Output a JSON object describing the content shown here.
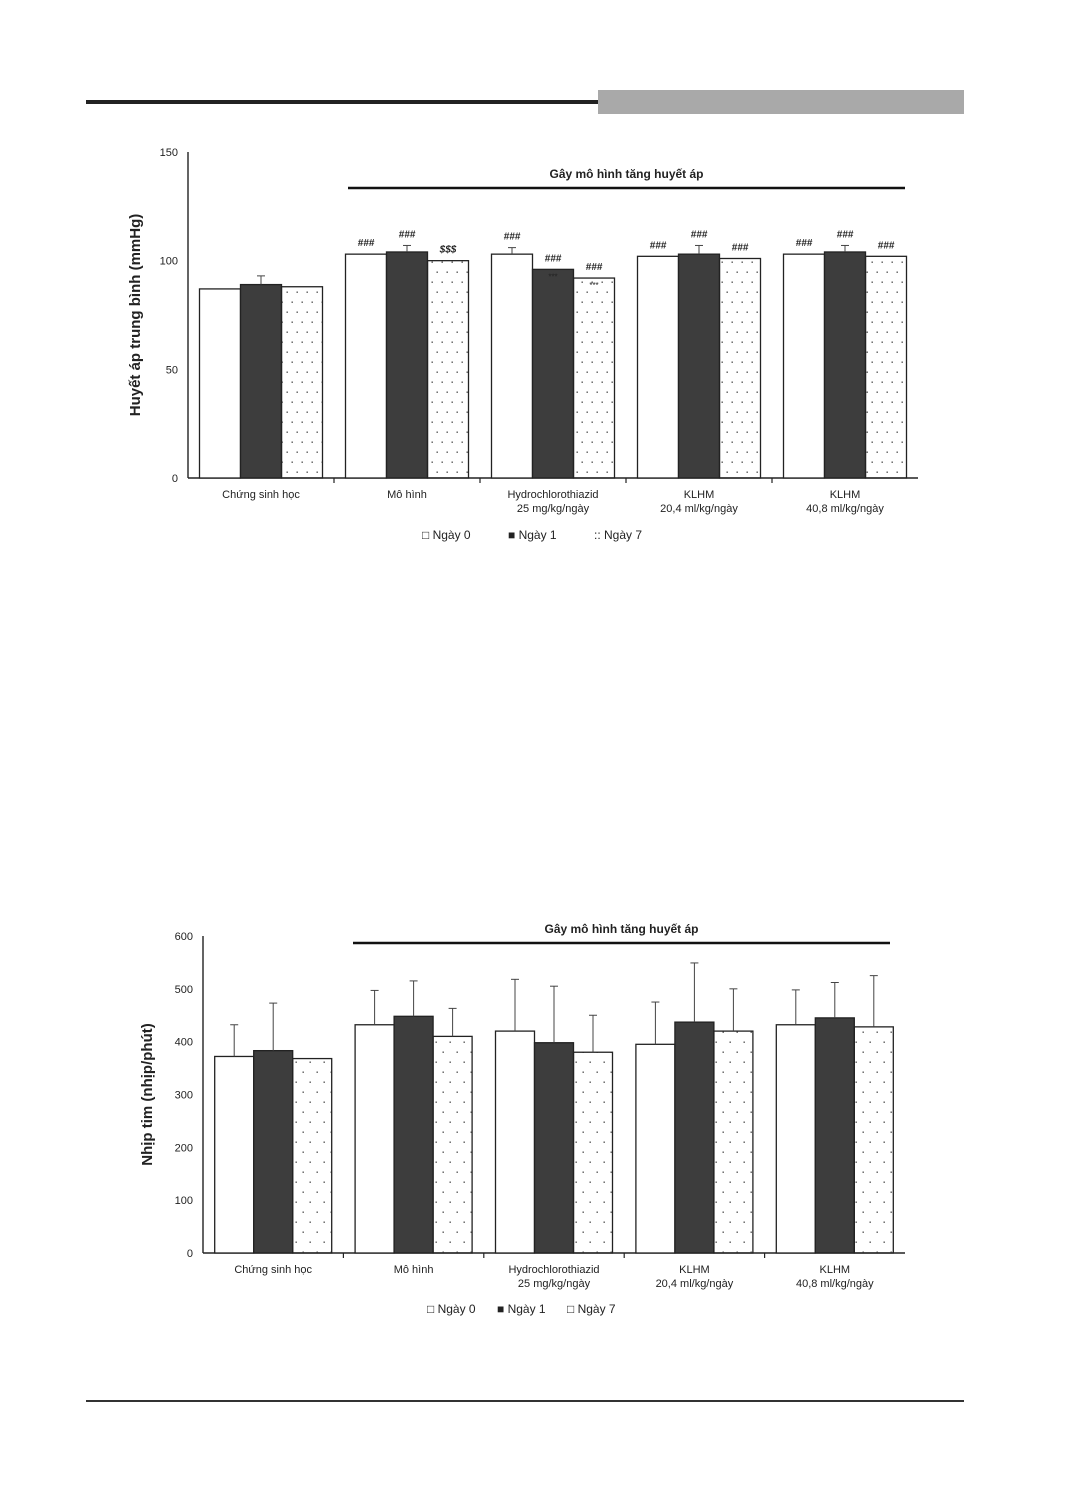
{
  "page": {
    "accent_band_color": "#a9a9a9",
    "rule_color": "#222222"
  },
  "chart_data": [
    {
      "type": "bar",
      "ylabel": "Huyết áp trung bình (mmHg)",
      "ylim": [
        0,
        150
      ],
      "yticks": [
        "0",
        "50",
        "100",
        "150"
      ],
      "bracket_label": "Gây mô hình tăng huyết áp",
      "categories": [
        [
          "Chứng sinh học"
        ],
        [
          "Mô hình"
        ],
        [
          "Hydrochlorothiazid",
          "25 mg/kg/ngày"
        ],
        [
          "KLHM",
          "20,4 ml/kg/ngày"
        ],
        [
          "KLHM",
          "40,8 ml/kg/ngày"
        ]
      ],
      "series": [
        {
          "name": "Ngày 0",
          "values": [
            87,
            103,
            103,
            102,
            103
          ],
          "errors": [
            0,
            0,
            3,
            0,
            0
          ],
          "color": "#ffffff",
          "pattern": "none",
          "legend_symbol": "□"
        },
        {
          "name": "Ngày 1",
          "values": [
            89,
            104,
            96,
            103,
            104
          ],
          "errors": [
            4,
            3,
            0,
            4,
            3
          ],
          "color": "#3d3d3d",
          "pattern": "none",
          "legend_symbol": "■"
        },
        {
          "name": "Ngày 7",
          "values": [
            88,
            100,
            92,
            101,
            102
          ],
          "errors": [
            0,
            0,
            0,
            0,
            0
          ],
          "color": "#ffffff",
          "pattern": "dots",
          "legend_symbol": "::"
        }
      ],
      "annotations": [
        [
          "",
          "",
          ""
        ],
        [
          "###",
          "###",
          "$$$"
        ],
        [
          "###",
          "###",
          "###"
        ],
        [
          "###",
          "###",
          "###"
        ],
        [
          "###",
          "###",
          "###"
        ]
      ],
      "annotations_small": [
        [
          "",
          "",
          ""
        ],
        [
          "",
          "",
          ""
        ],
        [
          "",
          "***",
          "***"
        ],
        [
          "",
          "",
          ""
        ],
        [
          "",
          "",
          ""
        ]
      ]
    },
    {
      "type": "bar",
      "ylabel": "Nhịp tim (nhịp/phút)",
      "ylim": [
        0,
        600
      ],
      "yticks": [
        "0",
        "100",
        "200",
        "300",
        "400",
        "500",
        "600"
      ],
      "bracket_label": "Gây mô hình tăng huyết áp",
      "categories": [
        [
          "Chứng sinh học"
        ],
        [
          "Mô hình"
        ],
        [
          "Hydrochlorothiazid",
          "25 mg/kg/ngày"
        ],
        [
          "KLHM",
          "20,4 ml/kg/ngày"
        ],
        [
          "KLHM",
          "40,8 ml/kg/ngày"
        ]
      ],
      "series": [
        {
          "name": "Ngày 0",
          "values": [
            372,
            432,
            420,
            395,
            432
          ],
          "errors": [
            60,
            65,
            98,
            80,
            66
          ],
          "color": "#ffffff",
          "pattern": "none",
          "legend_symbol": "□"
        },
        {
          "name": "Ngày 1",
          "values": [
            383,
            448,
            398,
            437,
            445
          ],
          "errors": [
            90,
            67,
            107,
            112,
            67
          ],
          "color": "#3d3d3d",
          "pattern": "none",
          "legend_symbol": "■"
        },
        {
          "name": "Ngày 7",
          "values": [
            368,
            410,
            380,
            420,
            428
          ],
          "errors": [
            0,
            53,
            70,
            80,
            97
          ],
          "color": "#ffffff",
          "pattern": "dots",
          "legend_symbol": "□"
        }
      ]
    }
  ]
}
